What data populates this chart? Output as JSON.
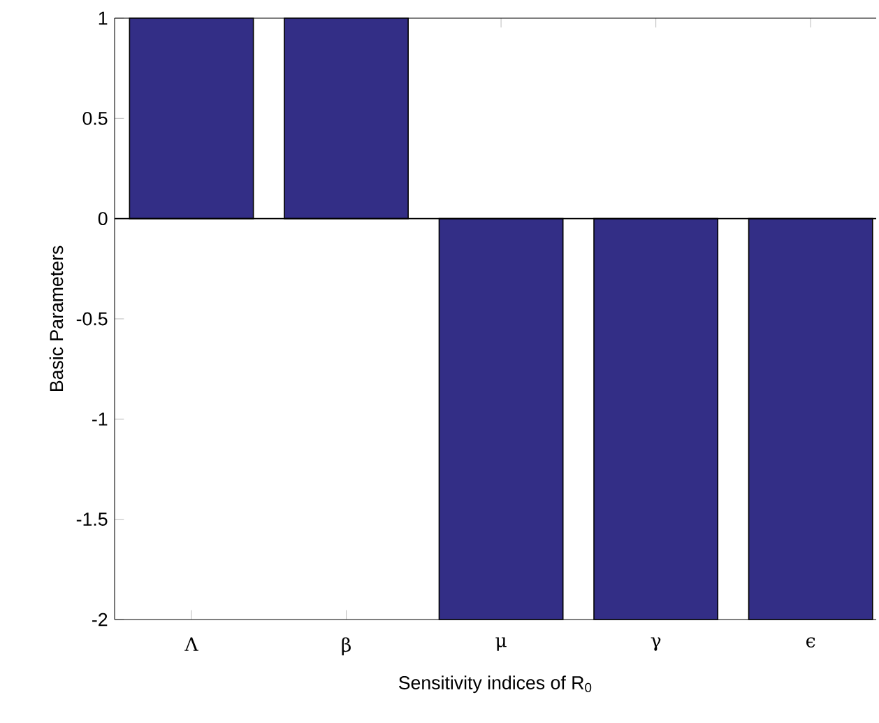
{
  "chart_data": {
    "type": "bar",
    "xlabel": "Sensitivity indices of R$_{0}$",
    "ylabel": "Basic Parameters",
    "categories": [
      "Λ",
      "β",
      "μ",
      "γ",
      "ϵ"
    ],
    "values": [
      1,
      1,
      -2,
      -2,
      -2
    ],
    "color": "#332e86",
    "ylim": [
      -2,
      1
    ],
    "yticks": [
      -2,
      -1.5,
      -1,
      -0.5,
      0,
      0.5,
      1
    ],
    "ref_lines": [
      {
        "axis": "y",
        "value": 0,
        "color": "#000000"
      }
    ]
  }
}
